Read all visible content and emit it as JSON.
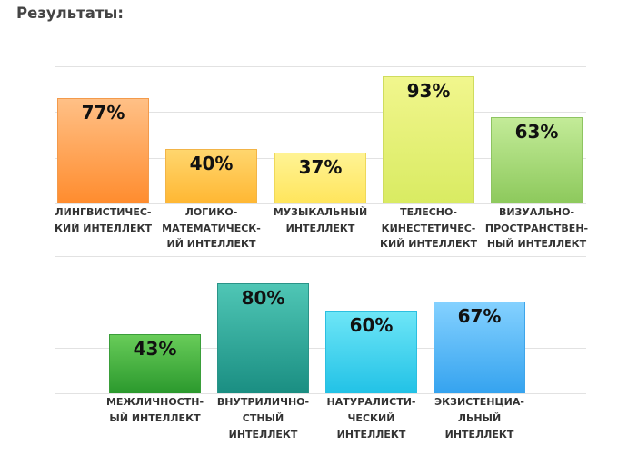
{
  "page": {
    "title": "Результаты:"
  },
  "chart_data": [
    {
      "type": "bar",
      "categories": [
        [
          "ЛИНГВИСТИЧЕС-",
          "КИЙ ИНТЕЛЛЕКТ"
        ],
        [
          "ЛОГИКО-",
          "МАТЕМАТИЧЕСК-",
          "ИЙ ИНТЕЛЛЕКТ"
        ],
        [
          "МУЗЫКАЛЬНЫЙ",
          "ИНТЕЛЛЕКТ"
        ],
        [
          "ТЕЛЕСНО-",
          "КИНЕСТЕТИЧЕС-",
          "КИЙ ИНТЕЛЛЕКТ"
        ],
        [
          "ВИЗУАЛЬНО-",
          "ПРОСТРАНСТВЕН-",
          "НЫЙ ИНТЕЛЛЕКТ"
        ]
      ],
      "values": [
        77,
        40,
        37,
        93,
        63
      ],
      "data_labels": [
        "77%",
        "40%",
        "37%",
        "93%",
        "63%"
      ],
      "ylim": [
        0,
        100
      ],
      "grid": true,
      "colors": [
        {
          "top": "#ffc086",
          "bottom": "#ff8c2e",
          "border": "#f39a4b"
        },
        {
          "top": "#ffd66e",
          "bottom": "#ffb733",
          "border": "#f2b447"
        },
        {
          "top": "#fff394",
          "bottom": "#ffe55c",
          "border": "#eed85a"
        },
        {
          "top": "#f1f68d",
          "bottom": "#d9eb62",
          "border": "#cfdc5e"
        },
        {
          "top": "#c3eb98",
          "bottom": "#8dc95c",
          "border": "#8ec461"
        }
      ]
    },
    {
      "type": "bar",
      "categories": [
        [
          "МЕЖЛИЧНОСТН-",
          "ЫЙ ИНТЕЛЛЕКТ"
        ],
        [
          "ВНУТРИЛИЧНО-",
          "СТНЫЙ",
          "ИНТЕЛЛЕКТ"
        ],
        [
          "НАТУРАЛИСТИ-",
          "ЧЕСКИЙ",
          "ИНТЕЛЛЕКТ"
        ],
        [
          "ЭКЗИСТЕНЦИА-",
          "ЛЬНЫЙ",
          "ИНТЕЛЛЕКТ"
        ]
      ],
      "values": [
        43,
        80,
        60,
        67
      ],
      "data_labels": [
        "43%",
        "80%",
        "60%",
        "67%"
      ],
      "ylim": [
        0,
        100
      ],
      "grid": true,
      "colors": [
        {
          "top": "#68cc59",
          "bottom": "#2b992d",
          "border": "#3a9e3a"
        },
        {
          "top": "#4fc6b5",
          "bottom": "#1a8e82",
          "border": "#2a9488"
        },
        {
          "top": "#6ee6f7",
          "bottom": "#22c2e6",
          "border": "#2cbfe0"
        },
        {
          "top": "#84d1ff",
          "bottom": "#35a3ef",
          "border": "#3ea5ea"
        }
      ]
    }
  ]
}
